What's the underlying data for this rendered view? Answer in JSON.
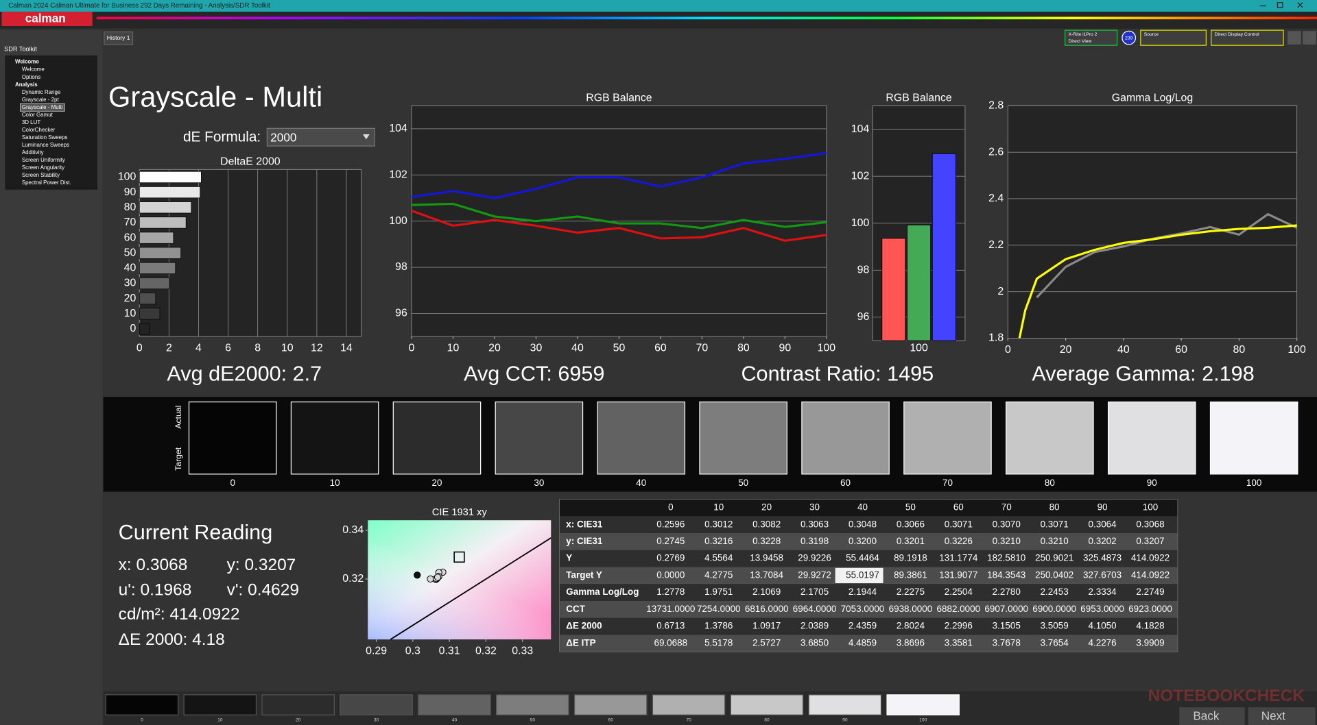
{
  "window": {
    "title": "Calman 2024 Calman Ultimate for Business 292 Days Remaining - Analysis/SDR Toolkit",
    "logo": "calman",
    "tab": "History 1",
    "sidebar_title": "SDR Toolkit",
    "nav": [
      {
        "label": "Welcome",
        "items": [
          "Welcome",
          "Options"
        ]
      },
      {
        "label": "Analysis",
        "items": [
          "Dynamic Range",
          "Grayscale - 2pt",
          "Grayscale - Multi",
          "Color Gamut",
          "3D LUT",
          "ColorChecker",
          "Saturation Sweeps",
          "Luminance Sweeps",
          "Additivity",
          "Screen Uniformity",
          "Screen Angularity",
          "Screen Stability",
          "Spectral Power Dist."
        ]
      }
    ],
    "meter": "X-Rite i1Pro 2",
    "meter_mode": "Direct View",
    "badge": "239",
    "source": "Source",
    "display": "Direct Display Control"
  },
  "page": {
    "title": "Grayscale - Multi",
    "formula_label": "dE Formula:",
    "formula": "2000",
    "stats": [
      "Avg dE2000: 2.7",
      "Avg CCT: 6959",
      "Contrast Ratio: 1495",
      "Average Gamma: 2.198"
    ]
  },
  "charts": {
    "delta_e": {
      "type": "bar",
      "orientation": "horizontal",
      "title": "DeltaE 2000",
      "categories": [
        "100",
        "90",
        "80",
        "70",
        "60",
        "50",
        "40",
        "30",
        "20",
        "10",
        "0"
      ],
      "values": [
        4.1828,
        4.105,
        3.5059,
        3.1505,
        2.2996,
        2.8024,
        2.4359,
        2.0389,
        1.0917,
        1.3786,
        0.6713
      ],
      "xlim": [
        0,
        15
      ],
      "xticks": [
        0,
        2,
        4,
        6,
        8,
        10,
        12,
        14
      ],
      "grid": true
    },
    "rgb_line": {
      "type": "line",
      "title": "RGB Balance",
      "x": [
        0,
        10,
        20,
        30,
        40,
        50,
        60,
        70,
        80,
        90,
        100
      ],
      "series": [
        {
          "color": "#1515e0",
          "values": [
            101.05,
            101.3,
            101.0,
            101.4,
            101.9,
            101.9,
            101.5,
            101.9,
            102.5,
            102.7,
            102.95
          ]
        },
        {
          "color": "#119911",
          "values": [
            100.7,
            100.75,
            100.2,
            100.0,
            100.2,
            99.9,
            99.9,
            99.7,
            100.05,
            99.75,
            99.95
          ]
        },
        {
          "color": "#e01010",
          "values": [
            100.45,
            99.8,
            100.05,
            99.8,
            99.5,
            99.7,
            99.25,
            99.3,
            99.7,
            99.15,
            99.4
          ]
        }
      ],
      "xlim": [
        0,
        100
      ],
      "xticks": [
        0,
        10,
        20,
        30,
        40,
        50,
        60,
        70,
        80,
        90,
        100
      ],
      "ylim": [
        95,
        105
      ],
      "yticks": [
        96,
        98,
        100,
        102,
        104
      ],
      "grid": true
    },
    "rgb_bar": {
      "type": "bar",
      "title": "RGB Balance",
      "categories": [
        "100"
      ],
      "series": [
        {
          "color": "#ff5555",
          "values": [
            99.36
          ]
        },
        {
          "color": "#44aa55",
          "values": [
            99.93
          ]
        },
        {
          "color": "#4444ff",
          "values": [
            102.96
          ]
        }
      ],
      "ylim": [
        95,
        105
      ],
      "yticks": [
        96,
        98,
        100,
        102,
        104
      ],
      "grid": true
    },
    "gamma": {
      "type": "line",
      "title": "Gamma Log/Log",
      "series": [
        {
          "color": "#8a8a8a",
          "x": [
            10,
            20,
            30,
            40,
            50,
            60,
            70,
            80,
            90,
            100
          ],
          "values": [
            1.9751,
            2.1069,
            2.1705,
            2.1944,
            2.2275,
            2.2504,
            2.278,
            2.2453,
            2.3334,
            2.2749
          ]
        },
        {
          "color": "#ffff00",
          "x": [
            4,
            6,
            10,
            20,
            30,
            40,
            50,
            60,
            70,
            80,
            90,
            100
          ],
          "values": [
            1.8,
            1.92,
            2.056,
            2.14,
            2.18,
            2.21,
            2.225,
            2.245,
            2.26,
            2.27,
            2.275,
            2.285
          ]
        }
      ],
      "xlim": [
        0,
        100
      ],
      "xticks": [
        0,
        20,
        40,
        60,
        80,
        100
      ],
      "ylim": [
        1.8,
        2.8
      ],
      "yticks": [
        1.8,
        2,
        2.2,
        2.4,
        2.6,
        2.8
      ],
      "grid": true
    },
    "cie": {
      "type": "scatter",
      "title": "CIE 1931 xy",
      "series": [
        {
          "color": "#d8d8d8",
          "x": [
            0.3012,
            0.3082,
            0.3063,
            0.3048,
            0.3066,
            0.3071,
            0.307,
            0.3071,
            0.3064,
            0.3068
          ],
          "values": [
            0.3216,
            0.3228,
            0.3198,
            0.32,
            0.3201,
            0.3226,
            0.321,
            0.321,
            0.3202,
            0.3207
          ]
        }
      ],
      "target": {
        "x": 0.3127,
        "y": 0.329
      },
      "xlim": [
        0.2877,
        0.3378
      ],
      "xticks": [
        0.29,
        0.3,
        0.31,
        0.32,
        0.33
      ],
      "ylim": [
        0.2952,
        0.3441
      ],
      "yticks": [
        0.32,
        0.34
      ]
    }
  },
  "swatches": {
    "actual_label": "Actual",
    "target_label": "Target",
    "labels": [
      "0",
      "10",
      "20",
      "30",
      "40",
      "50",
      "60",
      "70",
      "80",
      "90",
      "100"
    ],
    "colors": [
      "#050505",
      "#141414",
      "#2c2c2c",
      "#474747",
      "#626262",
      "#7d7d7d",
      "#989898",
      "#b0b0b0",
      "#c8c8c8",
      "#e0e0e2",
      "#f4f4f8"
    ]
  },
  "reading": {
    "title": "Current Reading",
    "x": "x: 0.3068",
    "y": "y: 0.3207",
    "u": "u': 0.1968",
    "v": "v': 0.4629",
    "luminance": "cd/m²: 414.0922",
    "delta_e": "ΔE 2000: 4.18"
  },
  "table": {
    "header": [
      "0",
      "10",
      "20",
      "30",
      "40",
      "50",
      "60",
      "70",
      "80",
      "90",
      "100"
    ],
    "rows": [
      [
        "x: CIE31",
        "0.2596",
        "0.3012",
        "0.3082",
        "0.3063",
        "0.3048",
        "0.3066",
        "0.3071",
        "0.3070",
        "0.3071",
        "0.3064",
        "0.3068"
      ],
      [
        "y: CIE31",
        "0.2745",
        "0.3216",
        "0.3228",
        "0.3198",
        "0.3200",
        "0.3201",
        "0.3226",
        "0.3210",
        "0.3210",
        "0.3202",
        "0.3207"
      ],
      [
        "Y",
        "0.2769",
        "4.5564",
        "13.9458",
        "29.9226",
        "55.4464",
        "89.1918",
        "131.1774",
        "182.5810",
        "250.9021",
        "325.4873",
        "414.0922"
      ],
      [
        "Target Y",
        "0.0000",
        "4.2775",
        "13.7084",
        "29.9272",
        "55.0197",
        "89.3861",
        "131.9077",
        "184.3543",
        "250.0402",
        "327.6703",
        "414.0922"
      ],
      [
        "Gamma Log/Log",
        "1.2778",
        "1.9751",
        "2.1069",
        "2.1705",
        "2.1944",
        "2.2275",
        "2.2504",
        "2.2780",
        "2.2453",
        "2.3334",
        "2.2749"
      ],
      [
        "CCT",
        "13731.0000",
        "7254.0000",
        "6816.0000",
        "6964.0000",
        "7053.0000",
        "6938.0000",
        "6882.0000",
        "6907.0000",
        "6900.0000",
        "6953.0000",
        "6923.0000"
      ],
      [
        "ΔE 2000",
        "0.6713",
        "1.3786",
        "1.0917",
        "2.0389",
        "2.4359",
        "2.8024",
        "2.2996",
        "3.1505",
        "3.5059",
        "4.1050",
        "4.1828"
      ],
      [
        "ΔE ITP",
        "69.0688",
        "5.5178",
        "2.5727",
        "3.6850",
        "4.4859",
        "3.8696",
        "3.3581",
        "3.7678",
        "3.7654",
        "4.2276",
        "3.9909"
      ]
    ]
  },
  "footer": {
    "back": "Back",
    "next": "Next",
    "watermark": "NOTEBOOKCHECK"
  }
}
